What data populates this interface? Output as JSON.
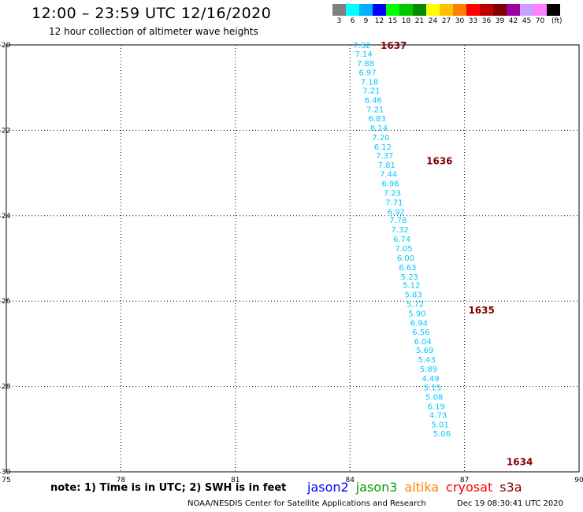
{
  "header": {
    "title": "12:00 – 23:59 UTC 12/16/2020",
    "subtitle": "12 hour collection of altimeter wave heights"
  },
  "legend": {
    "colors": [
      "#808080",
      "#00ffff",
      "#00b0ff",
      "#0000ff",
      "#00ff00",
      "#00c800",
      "#008c00",
      "#ffff00",
      "#ffc000",
      "#ff8000",
      "#ff0000",
      "#c00000",
      "#800000",
      "#a000a0",
      "#c8a0ff",
      "#ff80ff",
      "#000000"
    ],
    "labels": [
      "3",
      "6",
      "9",
      "12",
      "15",
      "18",
      "21",
      "24",
      "27",
      "30",
      "33",
      "36",
      "39",
      "42",
      "45",
      "70"
    ],
    "unit": "(ft)"
  },
  "chart_data": {
    "type": "scatter",
    "xlim": [
      75,
      90
    ],
    "ylim": [
      -30,
      -20
    ],
    "x_ticks": [
      75,
      78,
      81,
      84,
      87,
      90
    ],
    "y_ticks": [
      -20,
      -22,
      -24,
      -26,
      -28,
      -30
    ],
    "grid": true,
    "swh_color": "#00c8ff",
    "pass_color": "#800000",
    "passes": [
      {
        "label": "1637",
        "lon": 84.8,
        "lat": -20.0
      },
      {
        "label": "1636",
        "lon": 86.0,
        "lat": -22.7
      },
      {
        "label": "1635",
        "lon": 87.1,
        "lat": -26.2
      },
      {
        "label": "1634",
        "lon": 88.1,
        "lat": -29.75
      }
    ],
    "points": [
      {
        "lon": 84.08,
        "lat": -20.0,
        "v": "7.32"
      },
      {
        "lon": 84.13,
        "lat": -20.2,
        "v": "7.14"
      },
      {
        "lon": 84.18,
        "lat": -20.42,
        "v": "7.88"
      },
      {
        "lon": 84.23,
        "lat": -20.64,
        "v": "6.97"
      },
      {
        "lon": 84.28,
        "lat": -20.86,
        "v": "7.18"
      },
      {
        "lon": 84.33,
        "lat": -21.06,
        "v": "7.21"
      },
      {
        "lon": 84.38,
        "lat": -21.28,
        "v": "6.46"
      },
      {
        "lon": 84.43,
        "lat": -21.5,
        "v": "7.21"
      },
      {
        "lon": 84.48,
        "lat": -21.72,
        "v": "6.83"
      },
      {
        "lon": 84.53,
        "lat": -21.94,
        "v": "8.14"
      },
      {
        "lon": 84.58,
        "lat": -22.16,
        "v": "7.20"
      },
      {
        "lon": 84.63,
        "lat": -22.38,
        "v": "6.12"
      },
      {
        "lon": 84.68,
        "lat": -22.58,
        "v": "7.37"
      },
      {
        "lon": 84.73,
        "lat": -22.8,
        "v": "7.81"
      },
      {
        "lon": 84.78,
        "lat": -23.02,
        "v": "7.44"
      },
      {
        "lon": 84.83,
        "lat": -23.24,
        "v": "6.96"
      },
      {
        "lon": 84.88,
        "lat": -23.46,
        "v": "7.23"
      },
      {
        "lon": 84.93,
        "lat": -23.68,
        "v": "7.71"
      },
      {
        "lon": 84.98,
        "lat": -23.9,
        "v": "6.92"
      },
      {
        "lon": 85.03,
        "lat": -24.1,
        "v": "7.78"
      },
      {
        "lon": 85.08,
        "lat": -24.32,
        "v": "7.32"
      },
      {
        "lon": 85.13,
        "lat": -24.54,
        "v": "6.74"
      },
      {
        "lon": 85.18,
        "lat": -24.76,
        "v": "7.05"
      },
      {
        "lon": 85.23,
        "lat": -24.98,
        "v": "6.00"
      },
      {
        "lon": 85.28,
        "lat": -25.2,
        "v": "6.63"
      },
      {
        "lon": 85.33,
        "lat": -25.42,
        "v": "5.23"
      },
      {
        "lon": 85.38,
        "lat": -25.62,
        "v": "5.12"
      },
      {
        "lon": 85.43,
        "lat": -25.84,
        "v": "5.83"
      },
      {
        "lon": 85.48,
        "lat": -26.06,
        "v": "5.72"
      },
      {
        "lon": 85.53,
        "lat": -26.28,
        "v": "5.90"
      },
      {
        "lon": 85.58,
        "lat": -26.5,
        "v": "6.94"
      },
      {
        "lon": 85.63,
        "lat": -26.72,
        "v": "6.56"
      },
      {
        "lon": 85.68,
        "lat": -26.94,
        "v": "6.04"
      },
      {
        "lon": 85.73,
        "lat": -27.14,
        "v": "5.69"
      },
      {
        "lon": 85.78,
        "lat": -27.36,
        "v": "5.43"
      },
      {
        "lon": 85.83,
        "lat": -27.58,
        "v": "5.89"
      },
      {
        "lon": 85.88,
        "lat": -27.8,
        "v": "4.49"
      },
      {
        "lon": 85.93,
        "lat": -28.02,
        "v": "5.15"
      },
      {
        "lon": 85.98,
        "lat": -28.24,
        "v": "5.08"
      },
      {
        "lon": 86.03,
        "lat": -28.46,
        "v": "6.19"
      },
      {
        "lon": 86.08,
        "lat": -28.66,
        "v": "4.73"
      },
      {
        "lon": 86.13,
        "lat": -28.88,
        "v": "5.01"
      },
      {
        "lon": 86.18,
        "lat": -29.1,
        "v": "5.06"
      }
    ]
  },
  "footer": {
    "note": "note: 1) Time is in UTC; 2) SWH is in feet",
    "satellites": [
      {
        "name": "jason2",
        "color": "#0000ff"
      },
      {
        "name": "jason3",
        "color": "#00a000"
      },
      {
        "name": "altika",
        "color": "#ff8000"
      },
      {
        "name": "cryosat",
        "color": "#ff0000"
      },
      {
        "name": "s3a",
        "color": "#800000"
      }
    ],
    "credit": "NOAA/NESDIS Center for Satellite Applications and Research",
    "timestamp": "Dec 19 08:30:41 UTC 2020"
  }
}
